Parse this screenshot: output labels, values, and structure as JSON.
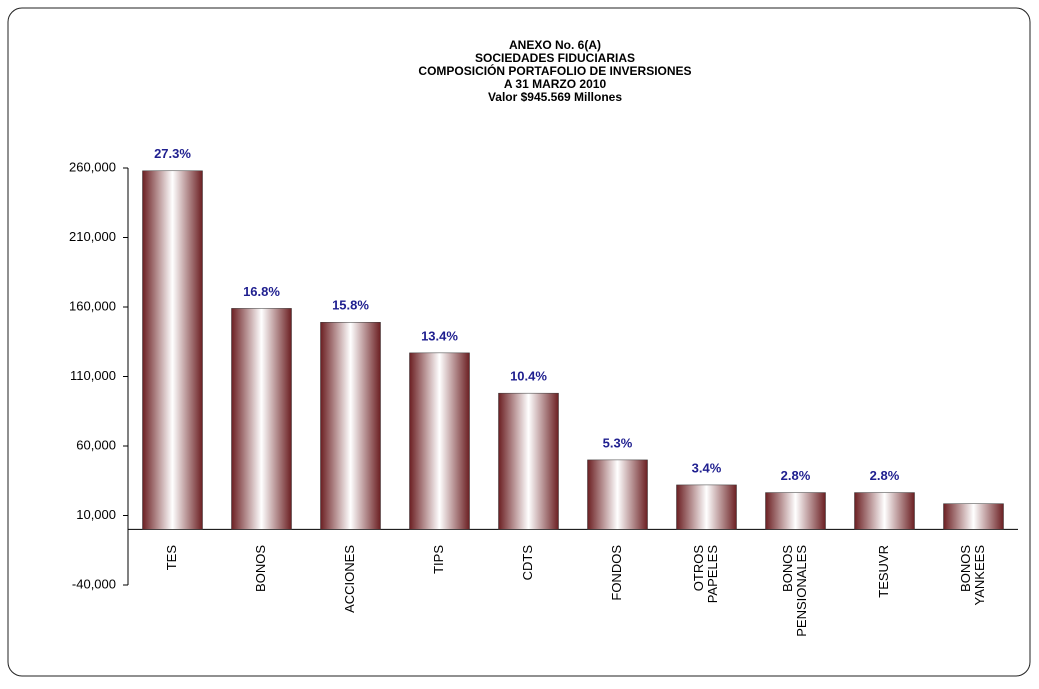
{
  "chart_data": {
    "type": "bar",
    "title": [
      "ANEXO No. 6(A)",
      "SOCIEDADES FIDUCIARIAS",
      "COMPOSICIÓN PORTAFOLIO DE INVERSIONES",
      "A 31  MARZO  2010",
      "Valor $945.569 Millones"
    ],
    "categories": [
      [
        "TES"
      ],
      [
        "BONOS"
      ],
      [
        "ACCIONES"
      ],
      [
        "TIPS"
      ],
      [
        "CDTS"
      ],
      [
        "FONDOS"
      ],
      [
        "OTROS",
        "PAPELES"
      ],
      [
        "BONOS",
        "PENSIONALES"
      ],
      [
        "TESUVR"
      ],
      [
        "BONOS",
        "YANKEES"
      ]
    ],
    "values": [
      258000,
      159000,
      149000,
      127000,
      98000,
      50000,
      32000,
      26500,
      26500,
      18500
    ],
    "data_labels": [
      "27.3%",
      "16.8%",
      "15.8%",
      "13.4%",
      "10.4%",
      "5.3%",
      "3.4%",
      "2.8%",
      "2.8%",
      null
    ],
    "color": "#6b1f22",
    "label_color": "#1f1f8f",
    "ylim": [
      -40000,
      260000
    ],
    "yticks": [
      {
        "value": -40000,
        "label": "-40,000"
      },
      {
        "value": 10000,
        "label": "10,000"
      },
      {
        "value": 60000,
        "label": "60,000"
      },
      {
        "value": 110000,
        "label": "110,000"
      },
      {
        "value": 160000,
        "label": "160,000"
      },
      {
        "value": 210000,
        "label": "210,000"
      },
      {
        "value": 260000,
        "label": "260,000"
      }
    ],
    "grid": false
  }
}
